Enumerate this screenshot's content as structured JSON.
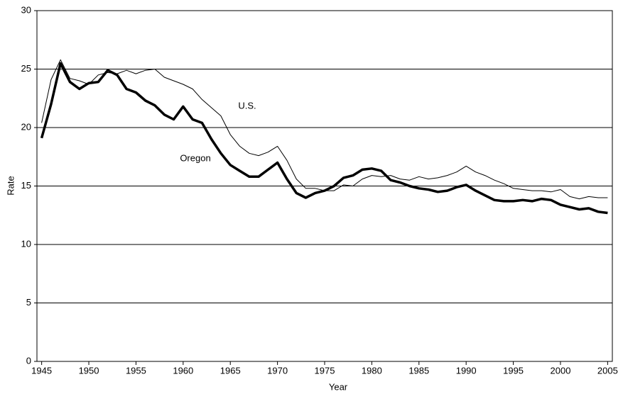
{
  "chart_data": {
    "type": "line",
    "x_label": "Year",
    "y_label": "Rate",
    "x": [
      1945,
      1946,
      1947,
      1948,
      1949,
      1950,
      1951,
      1952,
      1953,
      1954,
      1955,
      1956,
      1957,
      1958,
      1959,
      1960,
      1961,
      1962,
      1963,
      1964,
      1965,
      1966,
      1967,
      1968,
      1969,
      1970,
      1971,
      1972,
      1973,
      1974,
      1975,
      1976,
      1977,
      1978,
      1979,
      1980,
      1981,
      1982,
      1983,
      1984,
      1985,
      1986,
      1987,
      1988,
      1989,
      1990,
      1991,
      1992,
      1993,
      1994,
      1995,
      1996,
      1997,
      1998,
      1999,
      2000,
      2001,
      2002,
      2003,
      2004,
      2005
    ],
    "series": [
      {
        "name": "Oregon",
        "color": "#000000",
        "values": [
          19.1,
          22.0,
          25.5,
          23.9,
          23.3,
          23.8,
          23.9,
          24.9,
          24.5,
          23.3,
          23.0,
          22.3,
          21.9,
          21.1,
          20.7,
          21.8,
          20.7,
          20.4,
          19.0,
          17.8,
          16.8,
          16.3,
          15.8,
          15.8,
          16.4,
          17.0,
          15.6,
          14.4,
          14.0,
          14.4,
          14.6,
          15.0,
          15.7,
          15.9,
          16.4,
          16.5,
          16.3,
          15.5,
          15.3,
          15.0,
          14.8,
          14.7,
          14.5,
          14.6,
          14.9,
          15.1,
          14.6,
          14.2,
          13.8,
          13.7,
          13.7,
          13.8,
          13.7,
          13.9,
          13.8,
          13.4,
          13.2,
          13.0,
          13.1,
          12.8,
          12.7
        ]
      },
      {
        "name": "U.S.",
        "color": "#000000",
        "values": [
          20.4,
          24.1,
          25.8,
          24.2,
          24.0,
          23.7,
          24.5,
          24.7,
          24.6,
          24.9,
          24.6,
          24.9,
          25.0,
          24.3,
          24.0,
          23.7,
          23.3,
          22.4,
          21.7,
          21.0,
          19.4,
          18.4,
          17.8,
          17.6,
          17.9,
          18.4,
          17.2,
          15.6,
          14.8,
          14.8,
          14.6,
          14.6,
          15.1,
          15.0,
          15.6,
          15.9,
          15.8,
          15.9,
          15.6,
          15.5,
          15.8,
          15.6,
          15.7,
          15.9,
          16.2,
          16.7,
          16.2,
          15.9,
          15.5,
          15.2,
          14.8,
          14.7,
          14.6,
          14.6,
          14.5,
          14.7,
          14.1,
          13.9,
          14.1,
          14.0,
          14.0
        ]
      }
    ],
    "xlim": [
      1944.5,
      2005.5
    ],
    "xticks": [
      1945,
      1950,
      1955,
      1960,
      1965,
      1970,
      1975,
      1980,
      1985,
      1990,
      1995,
      2000,
      2005
    ],
    "ylim": [
      0,
      30
    ],
    "yticks": [
      0,
      5,
      10,
      15,
      20,
      25,
      30
    ],
    "grid": true
  }
}
